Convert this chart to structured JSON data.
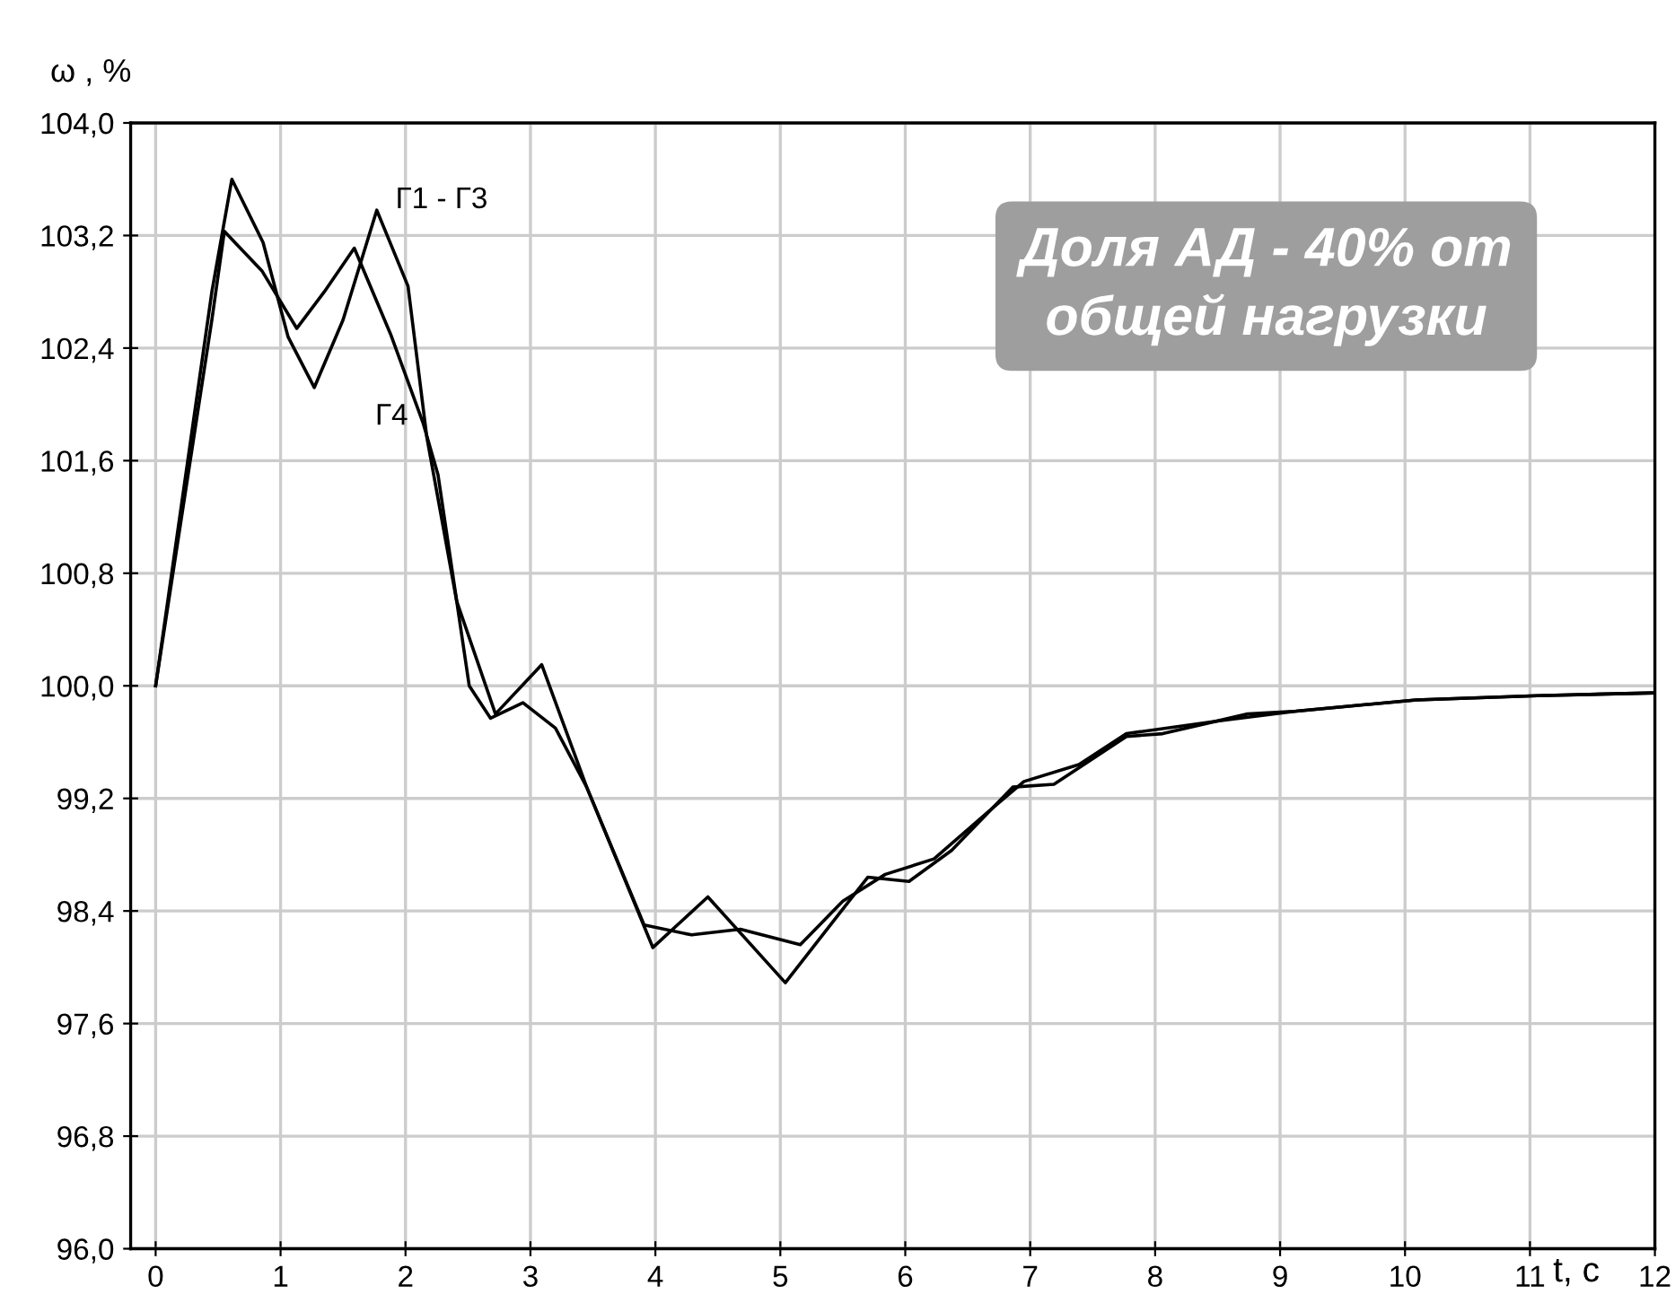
{
  "chart_data": {
    "type": "line",
    "xlabel": "t, c",
    "ylabel": "ω , %",
    "xlim": [
      -0.2,
      12
    ],
    "ylim": [
      96,
      104
    ],
    "xticks": [
      0,
      1,
      2,
      3,
      4,
      5,
      6,
      7,
      8,
      9,
      10,
      11,
      12
    ],
    "yticks": [
      {
        "value": 96,
        "label": "96,0"
      },
      {
        "value": 96.8,
        "label": "96,8"
      },
      {
        "value": 97.6,
        "label": "97,6"
      },
      {
        "value": 98.4,
        "label": "98,4"
      },
      {
        "value": 99.2,
        "label": "99,2"
      },
      {
        "value": 100,
        "label": "100,0"
      },
      {
        "value": 100.8,
        "label": "100,8"
      },
      {
        "value": 101.6,
        "label": "101,6"
      },
      {
        "value": 102.4,
        "label": "102,4"
      },
      {
        "value": 103.2,
        "label": "103,2"
      },
      {
        "value": 104,
        "label": "104,0"
      }
    ],
    "grid": true,
    "legend": false,
    "marker": "none",
    "line_style": "solid",
    "annotations": [
      "Доля АД - 40% от\nобщей нагрузки"
    ],
    "series": [
      {
        "name": "Г1 - Г3",
        "color": "#000000",
        "x": [
          0,
          0.45,
          0.61,
          0.86,
          1.06,
          1.27,
          1.5,
          1.77,
          2.02,
          2.17,
          2.41,
          2.72,
          3.09,
          3.45,
          3.98,
          4.42,
          5.04,
          5.4,
          5.7,
          6.03,
          6.37,
          6.86,
          7.19,
          7.77,
          8.06,
          8.74,
          9.13,
          10.09,
          11.06,
          12
        ],
        "values": [
          100,
          102.8,
          103.6,
          103.15,
          102.48,
          102.12,
          102.6,
          103.38,
          102.84,
          101.77,
          100.6,
          99.8,
          100.15,
          99.28,
          98.14,
          98.5,
          97.89,
          98.3,
          98.64,
          98.61,
          98.83,
          99.28,
          99.3,
          99.64,
          99.66,
          99.8,
          99.82,
          99.9,
          99.93,
          99.95
        ]
      },
      {
        "name": "Г4",
        "color": "#000000",
        "x": [
          0,
          0.45,
          0.55,
          0.85,
          1.13,
          1.35,
          1.59,
          1.88,
          2.14,
          2.26,
          2.51,
          2.68,
          2.94,
          3.2,
          3.45,
          3.91,
          4.29,
          4.68,
          5.16,
          5.5,
          5.84,
          6.23,
          6.71,
          6.95,
          7.39,
          7.77,
          8.5,
          9.13,
          10.09,
          11.06,
          12
        ],
        "values": [
          100,
          102.6,
          103.23,
          102.95,
          102.54,
          102.8,
          103.11,
          102.5,
          101.87,
          101.5,
          100.0,
          99.77,
          99.88,
          99.7,
          99.28,
          98.3,
          98.23,
          98.27,
          98.16,
          98.47,
          98.66,
          98.77,
          99.14,
          99.32,
          99.44,
          99.66,
          99.75,
          99.82,
          99.9,
          99.93,
          99.95
        ]
      }
    ]
  }
}
